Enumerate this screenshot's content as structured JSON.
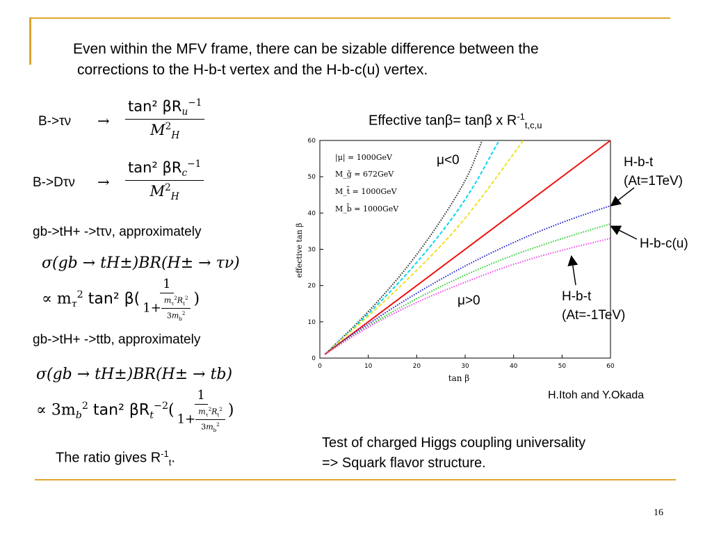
{
  "slide": {
    "headline_line1": "Even within the MFV frame, there can be sizable difference between  the",
    "headline_line2": "corrections to the H-b-t vertex and the H-b-c(u)  vertex.",
    "page_number": "16"
  },
  "left": {
    "btaunu_label": "B->τν",
    "btaunu_num": "tan² βR",
    "btaunu_num_sub": "u",
    "btaunu_num_sup": "−1",
    "btaunu_den": "M",
    "btaunu_den_sup": "2",
    "btaunu_den_sub": "H",
    "bdtaunu_label": "B->Dτν",
    "bdtaunu_num": "tan² βR",
    "bdtaunu_num_sub": "c",
    "bdtaunu_num_sup": "−1",
    "bdtaunu_den": "M",
    "bdtaunu_den_sup": "2",
    "bdtaunu_den_sub": "H",
    "gb_taunu_label": "gb->tH+ ->tτν, approximately",
    "eq1_line1": "σ(gb → tH±)BR(H± → τν)",
    "eq1_prefix": "∝ m",
    "eq1_mid": "tan² β(",
    "eq1_one": "1",
    "eq1_den": "1+",
    "eq1_close": ")",
    "gb_ttb_label": "gb->tH+ ->ttb, approximately",
    "eq2_line1": "σ(gb → tH±)BR(H± → tb)",
    "eq2_prefix": "∝ 3m",
    "eq2_mid": "tan² βR",
    "eq2_one": "1",
    "eq2_den": "1+",
    "eq2_close": ")",
    "ratio_text": "The ratio gives R",
    "ratio_sup": "-1",
    "ratio_sub": "t",
    "ratio_end": "."
  },
  "right": {
    "chart_title": "Effective tanβ= tanβ x R",
    "chart_title_sup": "-1",
    "chart_title_sub": "t,c,u",
    "mu_neg": "μ<0",
    "mu_pos": "μ>0",
    "hbt_pos_1": "H-b-t",
    "hbt_pos_2": "(At=1TeV)",
    "hbcu": "H-b-c(u)",
    "hbt_neg_1": "H-b-t",
    "hbt_neg_2": "(At=-1TeV)",
    "credit": "H.Itoh and Y.Okada",
    "test_line1": "Test of charged Higgs coupling universality",
    "test_line2": "=> Squark flavor structure."
  },
  "chart_data": {
    "type": "line",
    "xlabel": "tan β",
    "ylabel": "effective tan β",
    "xlim": [
      0,
      60
    ],
    "ylim": [
      0,
      60
    ],
    "xticks": [
      0,
      10,
      20,
      30,
      40,
      50,
      60
    ],
    "yticks": [
      0,
      10,
      20,
      30,
      40,
      50,
      60
    ],
    "legend_box": [
      "|μ| = 1000GeV",
      "M_g̃ = 672GeV",
      "M_t̃ = 1000GeV",
      "M_b̃ = 1000GeV"
    ],
    "series": [
      {
        "color": "#222222",
        "style": "dotted",
        "x": [
          1,
          10,
          20,
          30,
          33.5
        ],
        "y": [
          1,
          12.5,
          28,
          48,
          60
        ]
      },
      {
        "color": "#00d8f0",
        "style": "dashed",
        "x": [
          1,
          10,
          20,
          30,
          37
        ],
        "y": [
          1,
          12,
          26,
          43,
          60
        ]
      },
      {
        "color": "#f0e020",
        "style": "dashed",
        "x": [
          1,
          10,
          20,
          30,
          42
        ],
        "y": [
          1,
          11.5,
          24,
          38,
          60
        ]
      },
      {
        "color": "#ee1111",
        "style": "solid",
        "x": [
          1,
          60
        ],
        "y": [
          1,
          60
        ]
      },
      {
        "color": "#1a1ad0",
        "style": "dotted",
        "x": [
          1,
          10,
          20,
          30,
          40,
          50,
          60
        ],
        "y": [
          1,
          9.5,
          18,
          25.5,
          32,
          37.5,
          42
        ]
      },
      {
        "color": "#22cc22",
        "style": "dotted",
        "x": [
          1,
          10,
          20,
          30,
          40,
          50,
          60
        ],
        "y": [
          1,
          9,
          16.5,
          23,
          28.5,
          33,
          37
        ]
      },
      {
        "color": "#ee44ee",
        "style": "dotted",
        "x": [
          1,
          10,
          20,
          30,
          40,
          50,
          60
        ],
        "y": [
          1,
          8.7,
          15.5,
          21,
          26,
          29.8,
          33
        ]
      }
    ]
  }
}
